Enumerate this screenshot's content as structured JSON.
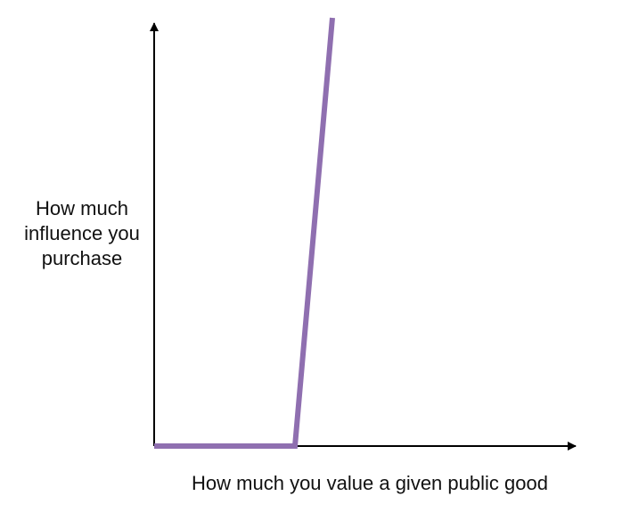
{
  "diagram": {
    "y_label_lines": [
      "How much",
      "influence you",
      "purchase"
    ],
    "x_label": "How much you value a given public good",
    "curve_color": "#8f6fb0",
    "axis_color": "#000000"
  }
}
